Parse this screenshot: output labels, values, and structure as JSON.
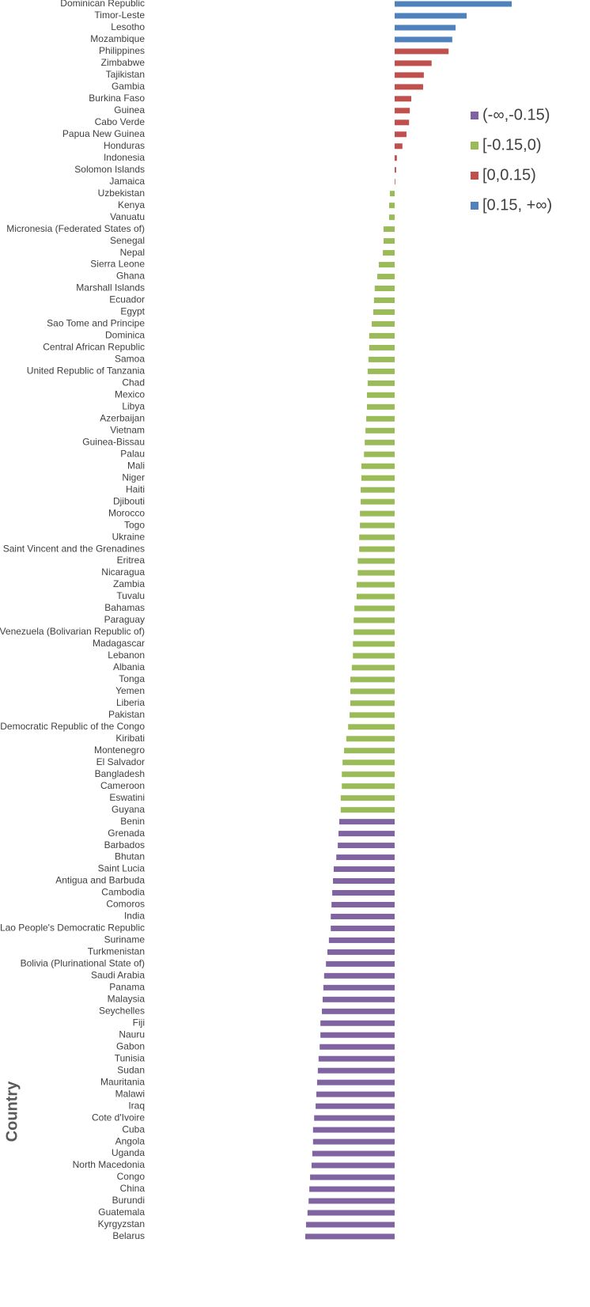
{
  "chart_data": {
    "type": "hbar",
    "axis_title": "Country",
    "categories": [
      "Dominican Republic",
      "Timor-Leste",
      "Lesotho",
      "Mozambique",
      "Philippines",
      "Zimbabwe",
      "Tajikistan",
      "Gambia",
      "Burkina Faso",
      "Guinea",
      "Cabo Verde",
      "Papua New Guinea",
      "Honduras",
      "Indonesia",
      "Solomon Islands",
      "Jamaica",
      "Uzbekistan",
      "Kenya",
      "Vanuatu",
      "Micronesia (Federated States of)",
      "Senegal",
      "Nepal",
      "Sierra Leone",
      "Ghana",
      "Marshall Islands",
      "Ecuador",
      "Egypt",
      "Sao Tome and Principe",
      "Dominica",
      "Central African Republic",
      "Samoa",
      "United Republic of Tanzania",
      "Chad",
      "Mexico",
      "Libya",
      "Azerbaijan",
      "Vietnam",
      "Guinea-Bissau",
      "Palau",
      "Mali",
      "Niger",
      "Haiti",
      "Djibouti",
      "Morocco",
      "Togo",
      "Ukraine",
      "Saint Vincent and the Grenadines",
      "Eritrea",
      "Nicaragua",
      "Zambia",
      "Tuvalu",
      "Bahamas",
      "Paraguay",
      "Venezuela (Bolivarian Republic of)",
      "Madagascar",
      "Lebanon",
      "Albania",
      "Tonga",
      "Yemen",
      "Liberia",
      "Pakistan",
      "Democratic Republic of the Congo",
      "Kiribati",
      "Montenegro",
      "El Salvador",
      "Bangladesh",
      "Cameroon",
      "Eswatini",
      "Guyana",
      "Benin",
      "Grenada",
      "Barbados",
      "Bhutan",
      "Saint Lucia",
      "Antigua and Barbuda",
      "Cambodia",
      "Comoros",
      "India",
      "Lao People's Democratic Republic",
      "Suriname",
      "Turkmenistan",
      "Bolivia (Plurinational State of)",
      "Saudi Arabia",
      "Panama",
      "Malaysia",
      "Seychelles",
      "Fiji",
      "Nauru",
      "Gabon",
      "Tunisia",
      "Sudan",
      "Mauritania",
      "Malawi",
      "Iraq",
      "Cote d'Ivoire",
      "Cuba",
      "Angola",
      "Uganda",
      "North Macedonia",
      "Congo",
      "China",
      "Burundi",
      "Guatemala",
      "Kyrgyzstan",
      "Belarus"
    ],
    "series": [
      {
        "name": "(-∞,-0.15)",
        "color": "#8064a2",
        "values": [
          null,
          null,
          null,
          null,
          null,
          null,
          null,
          null,
          null,
          null,
          null,
          null,
          null,
          null,
          null,
          null,
          null,
          null,
          null,
          null,
          null,
          null,
          null,
          null,
          null,
          null,
          null,
          null,
          null,
          null,
          null,
          null,
          null,
          null,
          null,
          null,
          null,
          null,
          null,
          null,
          null,
          null,
          null,
          null,
          null,
          null,
          null,
          null,
          null,
          null,
          null,
          null,
          null,
          null,
          null,
          null,
          null,
          null,
          null,
          null,
          null,
          null,
          null,
          null,
          null,
          null,
          null,
          null,
          null,
          -0.15,
          -0.152,
          -0.154,
          -0.158,
          -0.165,
          -0.167,
          -0.169,
          -0.171,
          -0.173,
          -0.173,
          -0.178,
          -0.182,
          -0.186,
          -0.191,
          -0.193,
          -0.195,
          -0.197,
          -0.201,
          -0.201,
          -0.203,
          -0.206,
          -0.208,
          -0.21,
          -0.212,
          -0.214,
          -0.218,
          -0.221,
          -0.221,
          -0.223,
          -0.225,
          -0.229,
          -0.231,
          -0.233,
          -0.236,
          -0.24,
          -0.242
        ]
      },
      {
        "name": "[-0.15,0)",
        "color": "#9bbb59",
        "values": [
          null,
          null,
          null,
          null,
          null,
          null,
          null,
          null,
          null,
          null,
          null,
          null,
          null,
          null,
          null,
          null,
          -0.013,
          -0.015,
          -0.015,
          -0.03,
          -0.03,
          -0.032,
          -0.043,
          -0.047,
          -0.054,
          -0.056,
          -0.058,
          -0.062,
          -0.069,
          -0.069,
          -0.071,
          -0.073,
          -0.073,
          -0.075,
          -0.075,
          -0.077,
          -0.079,
          -0.081,
          -0.083,
          -0.09,
          -0.09,
          -0.092,
          -0.092,
          -0.094,
          -0.094,
          -0.096,
          -0.096,
          -0.1,
          -0.1,
          -0.103,
          -0.103,
          -0.109,
          -0.111,
          -0.111,
          -0.113,
          -0.113,
          -0.116,
          -0.12,
          -0.12,
          -0.12,
          -0.122,
          -0.126,
          -0.131,
          -0.137,
          -0.141,
          -0.143,
          -0.143,
          -0.146,
          -0.146,
          null,
          null,
          null,
          null,
          null,
          null,
          null,
          null,
          null,
          null,
          null,
          null,
          null,
          null,
          null,
          null,
          null,
          null,
          null,
          null,
          null,
          null,
          null,
          null,
          null,
          null,
          null,
          null,
          null,
          null,
          null,
          null,
          null,
          null,
          null,
          null
        ]
      },
      {
        "name": "[0,0.15)",
        "color": "#c0504d",
        "values": [
          null,
          null,
          null,
          null,
          0.146,
          0.1,
          0.079,
          0.077,
          0.045,
          0.041,
          0.039,
          0.032,
          0.021,
          0.006,
          0.004,
          0.001,
          null,
          null,
          null,
          null,
          null,
          null,
          null,
          null,
          null,
          null,
          null,
          null,
          null,
          null,
          null,
          null,
          null,
          null,
          null,
          null,
          null,
          null,
          null,
          null,
          null,
          null,
          null,
          null,
          null,
          null,
          null,
          null,
          null,
          null,
          null,
          null,
          null,
          null,
          null,
          null,
          null,
          null,
          null,
          null,
          null,
          null,
          null,
          null,
          null,
          null,
          null,
          null,
          null,
          null,
          null,
          null,
          null,
          null,
          null,
          null,
          null,
          null,
          null,
          null,
          null,
          null,
          null,
          null,
          null,
          null,
          null,
          null,
          null,
          null,
          null,
          null,
          null,
          null,
          null,
          null,
          null,
          null,
          null,
          null,
          null,
          null,
          null,
          null,
          null
        ]
      },
      {
        "name": "[0.15, +∞)",
        "color": "#4f81bd",
        "values": [
          0.317,
          0.195,
          0.165,
          0.156,
          null,
          null,
          null,
          null,
          null,
          null,
          null,
          null,
          null,
          null,
          null,
          null,
          null,
          null,
          null,
          null,
          null,
          null,
          null,
          null,
          null,
          null,
          null,
          null,
          null,
          null,
          null,
          null,
          null,
          null,
          null,
          null,
          null,
          null,
          null,
          null,
          null,
          null,
          null,
          null,
          null,
          null,
          null,
          null,
          null,
          null,
          null,
          null,
          null,
          null,
          null,
          null,
          null,
          null,
          null,
          null,
          null,
          null,
          null,
          null,
          null,
          null,
          null,
          null,
          null,
          null,
          null,
          null,
          null,
          null,
          null,
          null,
          null,
          null,
          null,
          null,
          null,
          null,
          null,
          null,
          null,
          null,
          null,
          null,
          null,
          null,
          null,
          null,
          null,
          null,
          null,
          null,
          null,
          null,
          null,
          null,
          null,
          null,
          null,
          null,
          null
        ]
      }
    ]
  }
}
